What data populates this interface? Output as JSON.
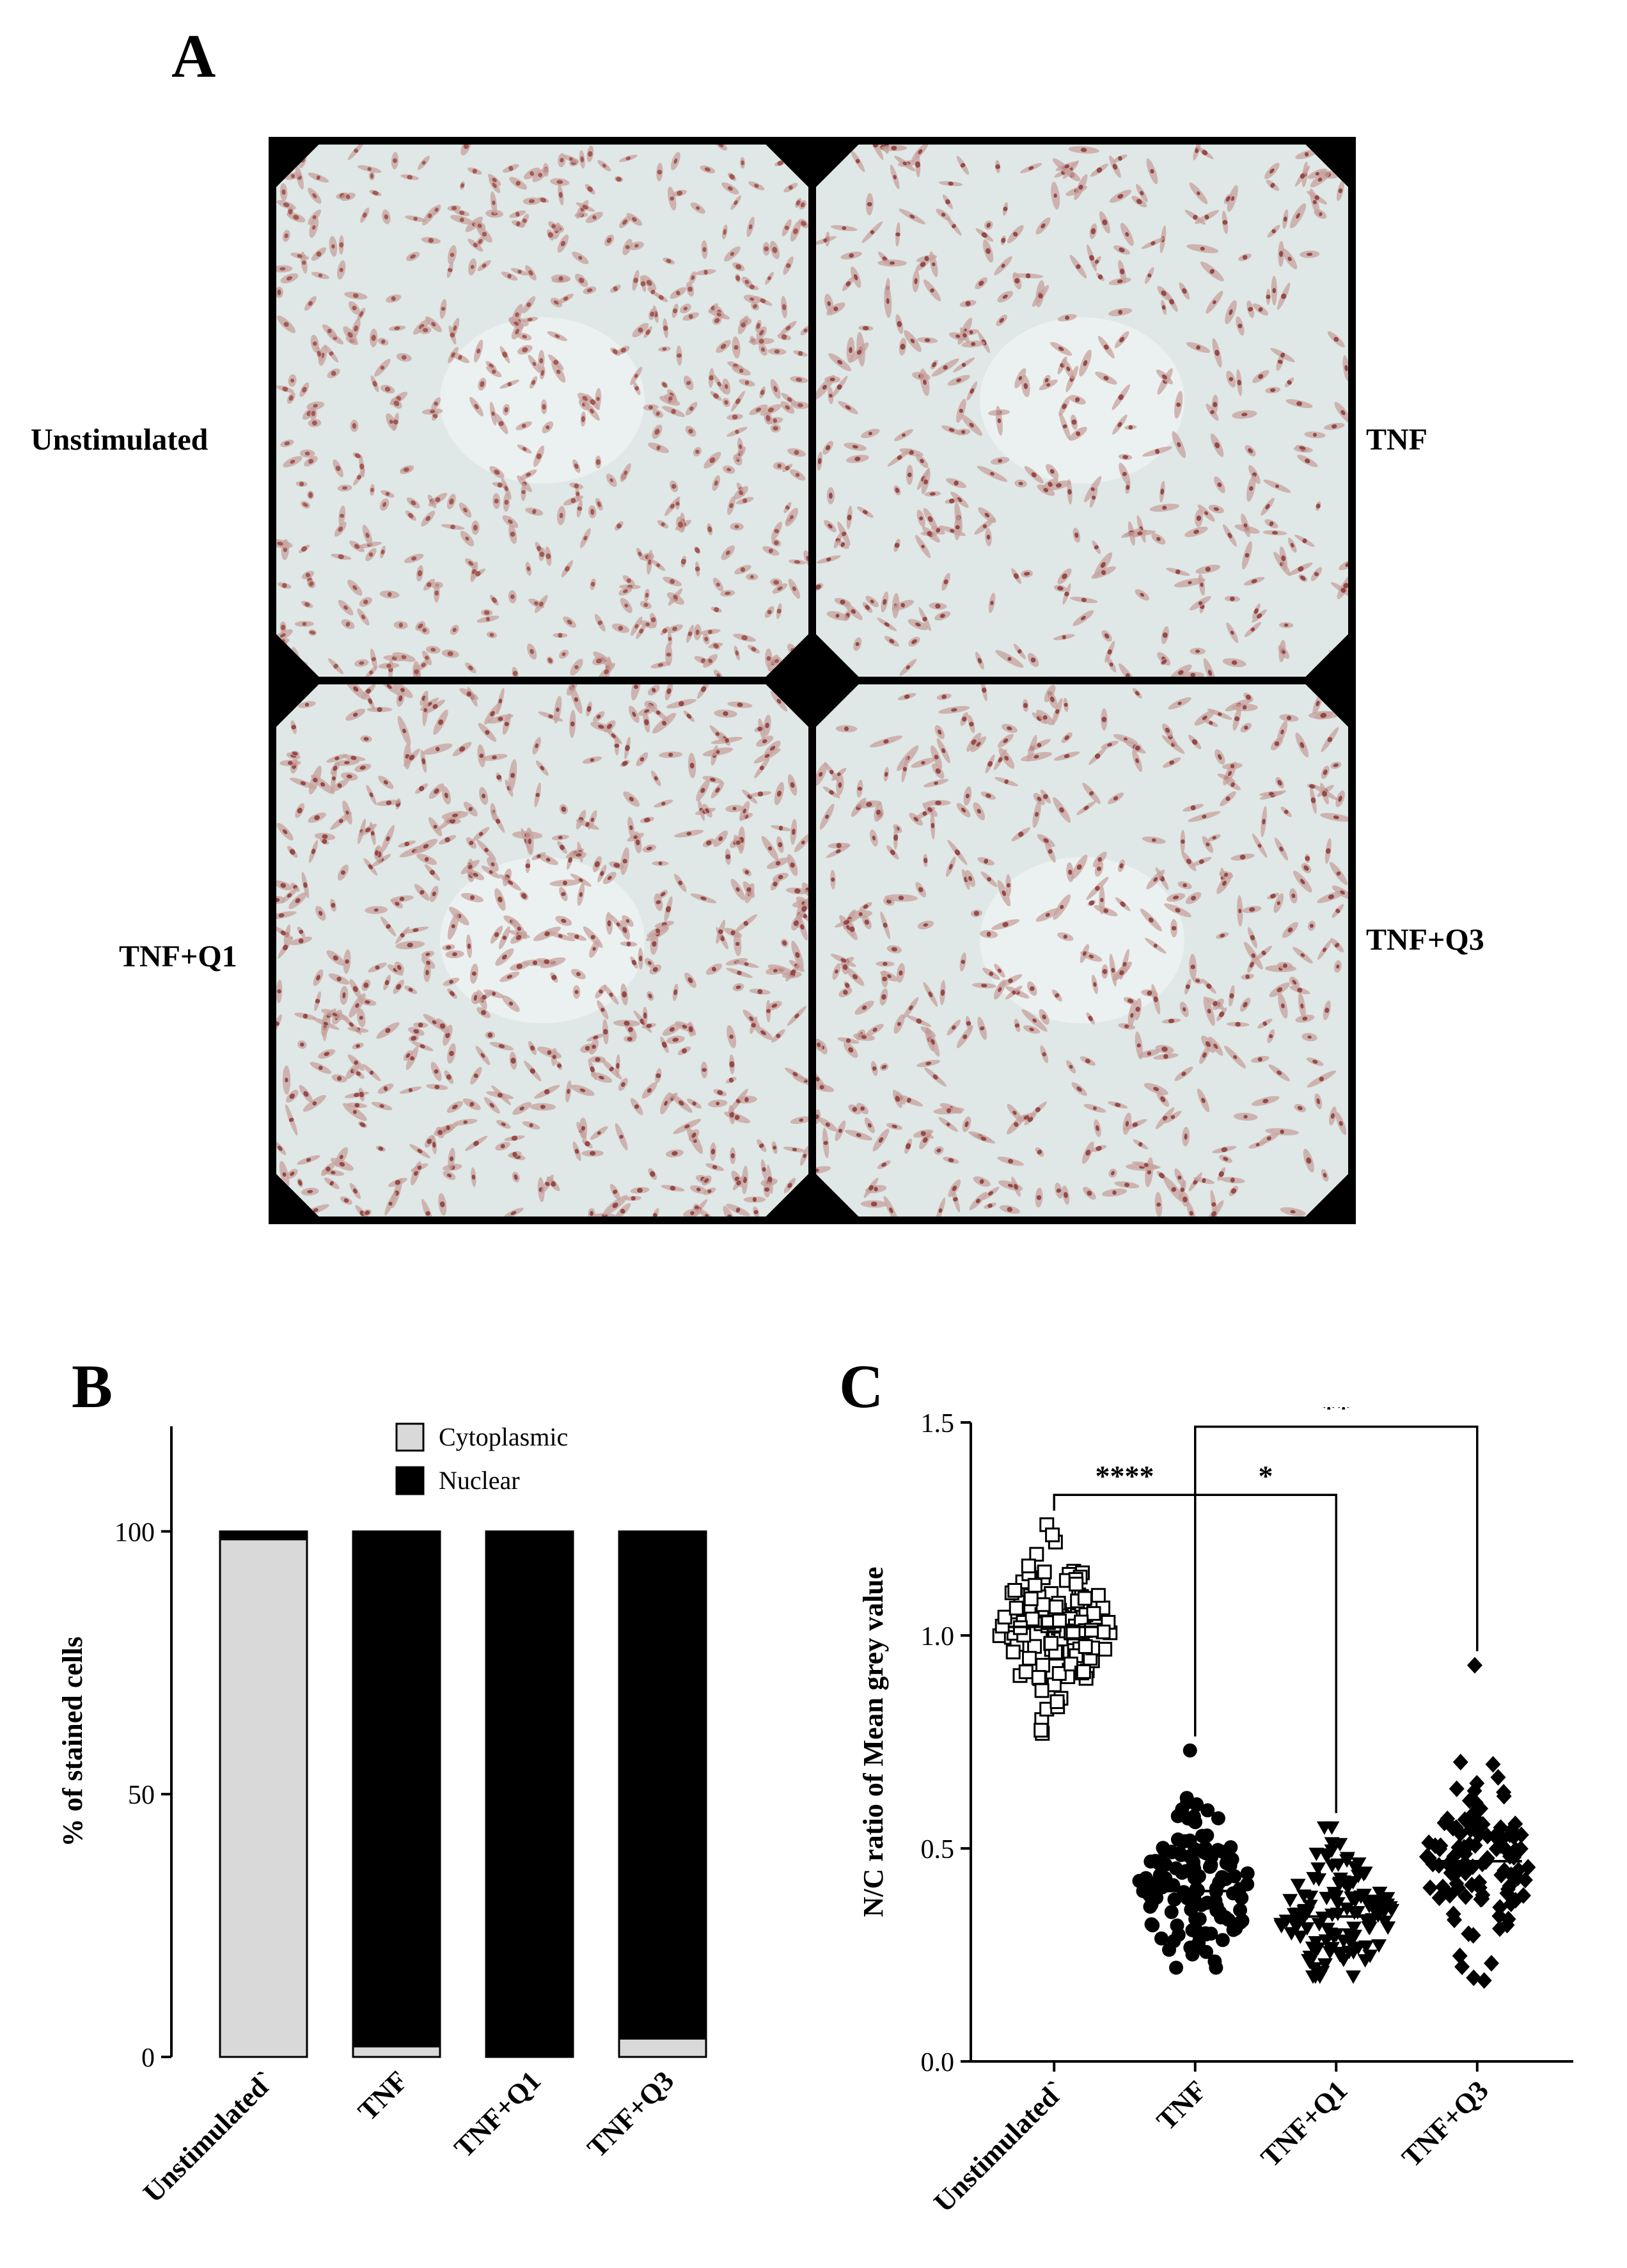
{
  "panel_letters": {
    "a": "A",
    "b": "B",
    "c": "C"
  },
  "micrographs": [
    {
      "label": "Unstimulated",
      "stain_color": "#9c5048",
      "density": 520,
      "elongation": 0.25
    },
    {
      "label": "TNF",
      "stain_color": "#8e3e3c",
      "density": 360,
      "elongation": 0.7
    },
    {
      "label": "TNF+Q1",
      "stain_color": "#8e3e3c",
      "density": 560,
      "elongation": 0.6
    },
    {
      "label": "TNF+Q3",
      "stain_color": "#8e3e3c",
      "density": 420,
      "elongation": 0.65
    }
  ],
  "chart_data": [
    {
      "type": "bar",
      "stacked": true,
      "categories": [
        "Unstimulated`",
        "TNF",
        "TNF+Q1",
        "TNF+Q3"
      ],
      "series": [
        {
          "name": "Cytoplasmic",
          "color": "#d9d9d9",
          "values": [
            98.5,
            2,
            0,
            3.5
          ]
        },
        {
          "name": "Nuclear",
          "color": "#000000",
          "values": [
            1.5,
            98,
            100,
            96.5
          ]
        }
      ],
      "ylabel": "% of stained cells",
      "ylim": [
        0,
        120
      ],
      "yticks": [
        0,
        50,
        100
      ],
      "legend_position": "top-center",
      "grid": false
    },
    {
      "type": "scatter",
      "categories": [
        "Unstimulated`",
        "TNF",
        "TNF+Q1",
        "TNF+Q3"
      ],
      "ylabel": "N/C ratio of Mean grey value",
      "ylim": [
        0,
        1.5
      ],
      "yticks": [
        "0.0",
        "0.5",
        "1.0",
        "1.5"
      ],
      "groups": [
        {
          "category": "Unstimulated`",
          "marker": "open-square",
          "mean": 1.02,
          "min": 0.77,
          "max": 1.26,
          "spread": 0.085,
          "n": 130
        },
        {
          "category": "TNF",
          "marker": "filled-circle",
          "mean": 0.4,
          "min": 0.22,
          "max": 0.73,
          "spread": 0.09,
          "n": 130
        },
        {
          "category": "TNF+Q1",
          "marker": "filled-triangle-down",
          "mean": 0.34,
          "min": 0.2,
          "max": 0.55,
          "spread": 0.075,
          "n": 120
        },
        {
          "category": "TNF+Q3",
          "marker": "filled-diamond",
          "mean": 0.47,
          "min": 0.19,
          "max": 0.93,
          "spread": 0.1,
          "n": 110
        }
      ],
      "significance": [
        {
          "from": "Unstimulated`",
          "to": "TNF",
          "label": "****",
          "level": 1.33
        },
        {
          "from": "TNF",
          "to": "TNF+Q1",
          "label": "*",
          "level": 1.33
        },
        {
          "from": "TNF",
          "to": "TNF+Q3",
          "label": "**",
          "level": 1.49
        }
      ],
      "grid": false
    }
  ]
}
